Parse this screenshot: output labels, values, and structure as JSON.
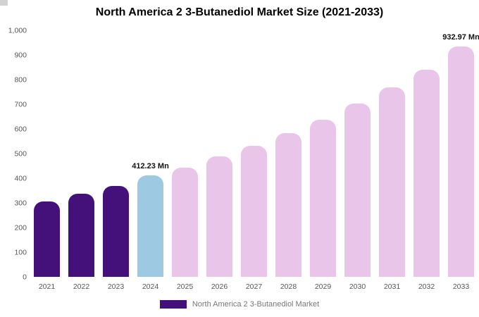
{
  "title": "North America 2 3-Butanediol Market Size (2021-2033)",
  "legend": {
    "label": "North America 2 3-Butanediol Market",
    "swatch_color": "#44107A"
  },
  "chart_data": {
    "type": "bar",
    "title": "North America 2 3-Butanediol Market Size (2021-2033)",
    "categories": [
      "2021",
      "2022",
      "2023",
      "2024",
      "2025",
      "2026",
      "2027",
      "2028",
      "2029",
      "2030",
      "2031",
      "2032",
      "2033"
    ],
    "values": [
      306,
      337,
      369,
      412.23,
      443,
      489,
      531,
      583,
      637,
      703,
      769,
      841,
      932.97
    ],
    "unit": "Mn",
    "data_labels": [
      "",
      "",
      "",
      "412.23 Mn",
      "",
      "",
      "",
      "",
      "",
      "",
      "",
      "",
      "932.97 Mn"
    ],
    "ylim": [
      0,
      1000
    ],
    "ytick_step": 100,
    "ytick_labels": [
      "0",
      "100",
      "200",
      "300",
      "400",
      "500",
      "600",
      "700",
      "800",
      "900",
      "1,000"
    ],
    "xlabel": "",
    "ylabel": "",
    "grid": false,
    "legend_position": "bottom",
    "colors": {
      "historical": "#44107A",
      "current": "#9DC9E3",
      "forecast": "#E9C5EA"
    },
    "color_roles": [
      "historical",
      "historical",
      "historical",
      "current",
      "forecast",
      "forecast",
      "forecast",
      "forecast",
      "forecast",
      "forecast",
      "forecast",
      "forecast",
      "forecast"
    ]
  }
}
